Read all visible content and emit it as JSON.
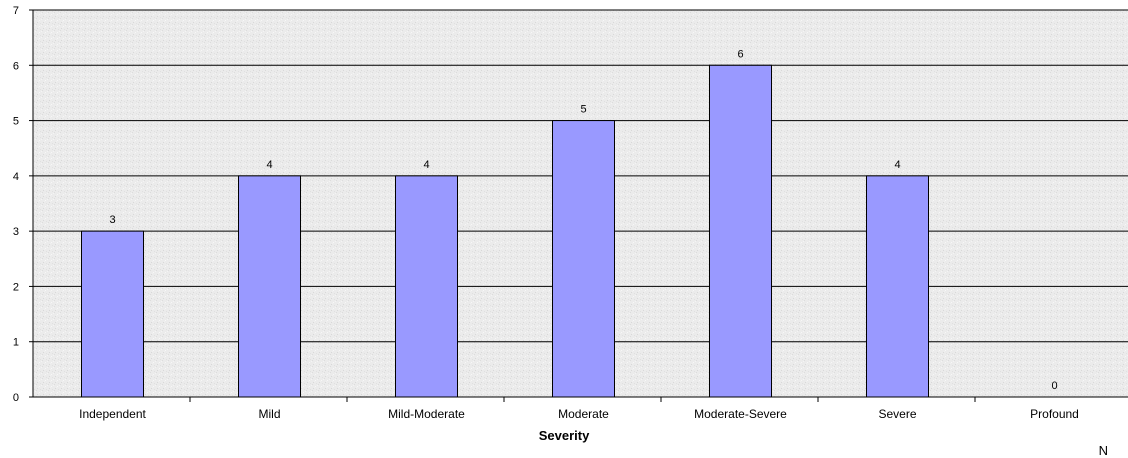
{
  "chart_data": {
    "type": "bar",
    "categories": [
      "Independent",
      "Mild",
      "Mild-Moderate",
      "Moderate",
      "Moderate-Severe",
      "Severe",
      "Profound"
    ],
    "values": [
      3,
      4,
      4,
      5,
      6,
      4,
      0
    ],
    "data_labels": [
      "3",
      "4",
      "4",
      "5",
      "6",
      "4",
      "0"
    ],
    "xlabel": "Severity",
    "ylabel": "",
    "ylim": [
      0,
      7
    ],
    "yticks": [
      0,
      1,
      2,
      3,
      4,
      5,
      6,
      7
    ],
    "grid": true,
    "bar_color": "#9999ff",
    "bar_stroke": "#000000",
    "background": "textured light gray"
  },
  "corner_text": "N"
}
